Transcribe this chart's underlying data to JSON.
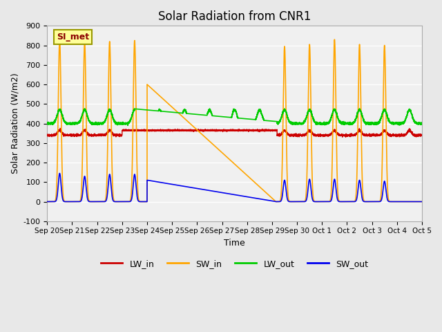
{
  "title": "Solar Radiation from CNR1",
  "xlabel": "Time",
  "ylabel": "Solar Radiation (W/m2)",
  "ylim": [
    -100,
    900
  ],
  "xlim": [
    0,
    15
  ],
  "xtick_labels": [
    "Sep 20",
    "Sep 21",
    "Sep 22",
    "Sep 23",
    "Sep 24",
    "Sep 25",
    "Sep 26",
    "Sep 27",
    "Sep 28",
    "Sep 29",
    "Sep 30",
    "Oct 1",
    "Oct 2",
    "Oct 3",
    "Oct 4",
    "Oct 5"
  ],
  "ytick_values": [
    -100,
    0,
    100,
    200,
    300,
    400,
    500,
    600,
    700,
    800,
    900
  ],
  "figure_bg_color": "#e8e8e8",
  "plot_bg_color": "#f0f0f0",
  "lw_in_color": "#cc0000",
  "sw_in_color": "#ffa500",
  "lw_out_color": "#00cc00",
  "sw_out_color": "#0000ee",
  "annotation_label": "SI_met",
  "annotation_bg": "#ffff99",
  "annotation_border": "#999900",
  "grid_color": "#ffffff",
  "title_fontsize": 12
}
